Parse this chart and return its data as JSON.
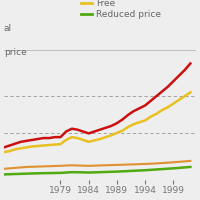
{
  "background_color": "#eeeeee",
  "x_ticks": [
    1979,
    1984,
    1989,
    1994,
    1999
  ],
  "years": [
    1969,
    1970,
    1971,
    1972,
    1973,
    1974,
    1975,
    1976,
    1977,
    1978,
    1979,
    1980,
    1981,
    1982,
    1983,
    1984,
    1985,
    1986,
    1987,
    1988,
    1989,
    1990,
    1991,
    1992,
    1993,
    1994,
    1995,
    1996,
    1997,
    1998,
    1999,
    2000,
    2001,
    2002
  ],
  "total": [
    3.5,
    3.7,
    3.9,
    4.1,
    4.2,
    4.3,
    4.4,
    4.5,
    4.5,
    4.6,
    4.6,
    5.2,
    5.5,
    5.4,
    5.2,
    5.0,
    5.2,
    5.4,
    5.6,
    5.8,
    6.1,
    6.5,
    7.0,
    7.4,
    7.7,
    8.0,
    8.5,
    9.0,
    9.5,
    10.0,
    10.6,
    11.2,
    11.8,
    12.5
  ],
  "free": [
    3.0,
    3.1,
    3.3,
    3.4,
    3.5,
    3.6,
    3.65,
    3.7,
    3.75,
    3.8,
    3.85,
    4.3,
    4.6,
    4.5,
    4.3,
    4.1,
    4.25,
    4.4,
    4.6,
    4.8,
    5.05,
    5.3,
    5.7,
    6.0,
    6.2,
    6.4,
    6.8,
    7.1,
    7.5,
    7.8,
    8.2,
    8.6,
    9.0,
    9.4
  ],
  "full_price": [
    1.2,
    1.25,
    1.3,
    1.35,
    1.4,
    1.42,
    1.44,
    1.46,
    1.48,
    1.5,
    1.52,
    1.55,
    1.58,
    1.56,
    1.54,
    1.52,
    1.54,
    1.56,
    1.58,
    1.6,
    1.62,
    1.64,
    1.66,
    1.68,
    1.7,
    1.72,
    1.75,
    1.78,
    1.82,
    1.86,
    1.9,
    1.95,
    2.0,
    2.05
  ],
  "reduced": [
    0.6,
    0.62,
    0.64,
    0.66,
    0.68,
    0.7,
    0.72,
    0.73,
    0.74,
    0.75,
    0.76,
    0.8,
    0.84,
    0.83,
    0.82,
    0.8,
    0.82,
    0.84,
    0.86,
    0.88,
    0.9,
    0.93,
    0.96,
    0.99,
    1.02,
    1.05,
    1.09,
    1.13,
    1.17,
    1.21,
    1.25,
    1.3,
    1.35,
    1.4
  ],
  "line_colors": {
    "total": "#cc1010",
    "free": "#e8c020",
    "full_price": "#e09030",
    "reduced": "#50aa10"
  },
  "line_widths": {
    "total": 1.8,
    "free": 1.8,
    "full_price": 1.5,
    "reduced": 1.8
  },
  "hlines": [
    5.0,
    9.0
  ],
  "ylim": [
    0.0,
    14.0
  ],
  "xlim": [
    1969,
    2003
  ],
  "tick_fontsize": 6.5,
  "tick_color": "#777777",
  "legend_left_top": "al",
  "legend_left_bottom": "price",
  "legend_right": [
    "Free",
    "Reduced price"
  ],
  "legend_right_colors": [
    "#e8c020",
    "#50aa10"
  ]
}
